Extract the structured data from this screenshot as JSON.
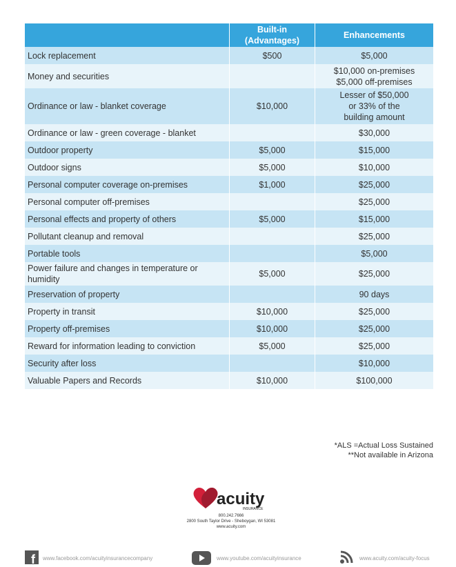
{
  "table": {
    "header": [
      "Built-in (Advantages)",
      "Enhancements"
    ],
    "rows": [
      {
        "item": [
          "Lock replacement"
        ],
        "builtin": "$500",
        "enhancement": [
          "$5,000"
        ]
      },
      {
        "item": [
          "Money and securities"
        ],
        "builtin": null,
        "enhancement": [
          "$10,000 on-premises",
          "$5,000 off-premises"
        ]
      },
      {
        "item": [
          "Ordinance or law - blanket coverage"
        ],
        "builtin": "$10,000",
        "enhancement": [
          "Lesser of $50,000",
          "or 33% of the",
          "building amount"
        ]
      },
      {
        "item": [
          "Ordinance or law - green coverage - blanket"
        ],
        "builtin": null,
        "enhancement": [
          "$30,000"
        ]
      },
      {
        "item": [
          "Outdoor property"
        ],
        "builtin": "$5,000",
        "enhancement": [
          "$15,000"
        ]
      },
      {
        "item": [
          "Outdoor signs"
        ],
        "builtin": "$5,000",
        "enhancement": [
          "$10,000"
        ]
      },
      {
        "item": [
          "Personal computer coverage on-premises"
        ],
        "builtin": "$1,000",
        "enhancement": [
          "$25,000"
        ]
      },
      {
        "item": [
          "Personal computer off-premises"
        ],
        "builtin": null,
        "enhancement": [
          "$25,000"
        ]
      },
      {
        "item": [
          "Personal effects and property of others"
        ],
        "builtin": "$5,000",
        "enhancement": [
          "$15,000"
        ]
      },
      {
        "item": [
          "Pollutant cleanup and removal"
        ],
        "builtin": null,
        "enhancement": [
          "$25,000"
        ]
      },
      {
        "item": [
          "Portable tools"
        ],
        "builtin": null,
        "enhancement": [
          "$5,000"
        ]
      },
      {
        "item": [
          "Power failure and changes in temperature or",
          "humidity"
        ],
        "builtin": "$5,000",
        "enhancement": [
          "$25,000"
        ]
      },
      {
        "item": [
          "Preservation of property"
        ],
        "builtin": null,
        "enhancement": [
          "90 days"
        ]
      },
      {
        "item": [
          "Property in transit"
        ],
        "builtin": "$10,000",
        "enhancement": [
          "$25,000"
        ]
      },
      {
        "item": [
          "Property off-premises"
        ],
        "builtin": "$10,000",
        "enhancement": [
          "$25,000"
        ]
      },
      {
        "item": [
          "Reward for information leading to conviction"
        ],
        "builtin": "$5,000",
        "enhancement": [
          "$25,000"
        ]
      },
      {
        "item": [
          "Security after loss"
        ],
        "builtin": null,
        "enhancement": [
          "$10,000"
        ]
      },
      {
        "item": [
          "Valuable Papers and Records"
        ],
        "builtin": "$10,000",
        "enhancement": [
          "$100,000"
        ]
      }
    ]
  },
  "notes": [
    "*ALS =Actual Loss Sustained",
    "**Not available in Arizona"
  ],
  "footer": {
    "logo": "acuity",
    "logo_sub": "INSURANCE",
    "phone": "800.242.7666",
    "address": "2800 South Taylor Drive - Sheboygan, WI 53081",
    "website": "www.acuity.com",
    "links": [
      "www.facebook.com/acuityinsurancecompany",
      "www.youtube.com/acuityinsurance",
      "www.acuity.com/acuity-focus"
    ]
  }
}
